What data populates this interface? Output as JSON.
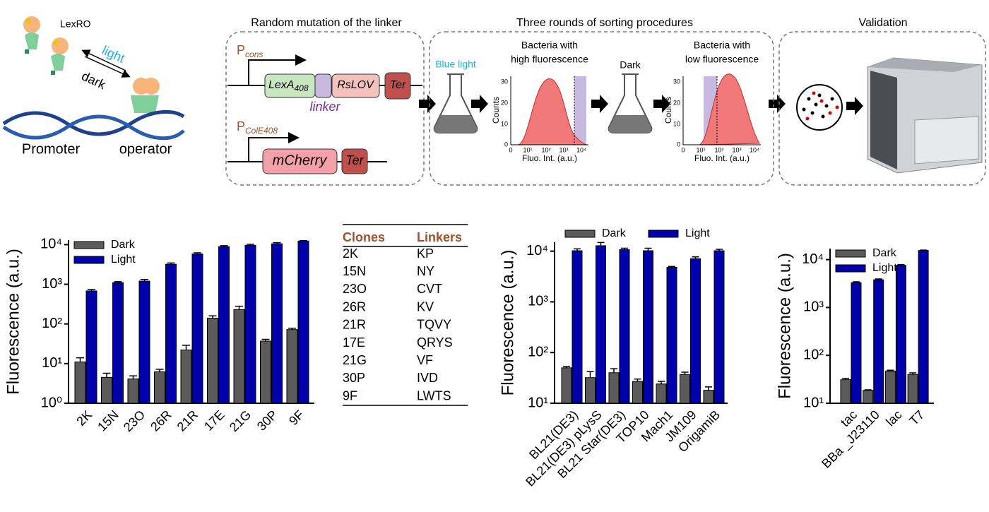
{
  "diagram": {
    "left": {
      "protein": "LexRO",
      "light": "light",
      "dark": "dark",
      "promoter": "Promoter",
      "operator": "operator"
    },
    "mutation": {
      "title": "Random mutation of  the linker",
      "p1": "P",
      "p1_sub": "cons",
      "lexa": "LexA",
      "lexa_sub": "408",
      "linker": "linker",
      "rslov": "RsLOV",
      "ter1": "Ter",
      "p2": "P",
      "p2_sub": "ColE408",
      "mcherry": "mCherry",
      "ter2": "Ter"
    },
    "sorting": {
      "title": "Three rounds of sorting procedures",
      "blue_light": "Blue light",
      "dark": "Dark",
      "histograms": [
        {
          "title": [
            "Bacteria with",
            "high fluorescence"
          ],
          "y_label": "Counts",
          "x_label": "Fluo. Int. (a.u.)",
          "yticks": [
            "0",
            "10",
            "20",
            "30"
          ],
          "xticks": [
            "0",
            "10¹",
            "10²",
            "10³",
            "10⁴"
          ]
        },
        {
          "title": [
            "Bacteria with",
            "low fluorescence"
          ],
          "y_label": "Counts",
          "x_label": "Fluo. Int. (a.u.)",
          "yticks": [
            "0",
            "10",
            "20",
            "30"
          ],
          "xticks": [
            "0",
            "10¹",
            "10²",
            "10³",
            "10⁴"
          ]
        }
      ]
    },
    "validation": {
      "title": "Validation"
    }
  },
  "table": {
    "header": [
      "Clones",
      "Linkers"
    ],
    "rows": [
      [
        "2K",
        "KP"
      ],
      [
        "15N",
        "NY"
      ],
      [
        "23O",
        "CVT"
      ],
      [
        "26R",
        "KV"
      ],
      [
        "21R",
        "TQVY"
      ],
      [
        "17E",
        "QRYS"
      ],
      [
        "21G",
        "VF"
      ],
      [
        "30P",
        "IVD"
      ],
      [
        "9F",
        "LWTS"
      ]
    ]
  },
  "chart_data": [
    {
      "type": "bar",
      "y_label": "Fluorescence (a.u.)",
      "log_scale": true,
      "legend": "upper left",
      "categories": [
        "2K",
        "15N",
        "23O",
        "26R",
        "21R",
        "17E",
        "21G",
        "30P",
        "9F"
      ],
      "series": [
        {
          "name": "Dark",
          "color": "#5b5b5b",
          "values": [
            11,
            4.5,
            4.1,
            6.2,
            22,
            140,
            230,
            37,
            72
          ],
          "errors": [
            3,
            1.2,
            0.8,
            1,
            7,
            20,
            50,
            4,
            6
          ]
        },
        {
          "name": "Light",
          "color": "#0000aa",
          "values": [
            680,
            1100,
            1200,
            3200,
            5800,
            8900,
            9600,
            10500,
            12300
          ],
          "errors": [
            60,
            60,
            120,
            250,
            400,
            500,
            600,
            700,
            300
          ]
        }
      ],
      "ylim": [
        1,
        13000
      ],
      "yticks": [
        {
          "value": 1,
          "label": "10⁰"
        },
        {
          "value": 10,
          "label": "10¹"
        },
        {
          "value": 100,
          "label": "10²"
        },
        {
          "value": 1000,
          "label": "10³"
        },
        {
          "value": 10000,
          "label": "10⁴"
        }
      ]
    },
    {
      "type": "bar",
      "y_label": "Fluorescence (a.u.)",
      "log_scale": true,
      "legend": "top",
      "categories": [
        "BL21(DE3)",
        "BL21(DE3) pLysS",
        "BL21 Star(DE3)",
        "TOP10",
        "Mach1",
        "JM109",
        "OrigamiB"
      ],
      "series": [
        {
          "name": "Dark",
          "color": "#5b5b5b",
          "values": [
            50,
            32,
            40,
            27,
            24,
            37,
            18
          ],
          "errors": [
            3,
            10,
            8,
            3,
            3,
            4,
            3
          ]
        },
        {
          "name": "Light",
          "color": "#0000aa",
          "values": [
            10200,
            12800,
            10700,
            10200,
            4800,
            7100,
            10200
          ],
          "errors": [
            900,
            2000,
            700,
            1200,
            200,
            600,
            700
          ]
        }
      ],
      "ylim": [
        10,
        15000
      ],
      "yticks": [
        {
          "value": 10,
          "label": "10¹"
        },
        {
          "value": 100,
          "label": "10²"
        },
        {
          "value": 1000,
          "label": "10³"
        },
        {
          "value": 10000,
          "label": "10⁴"
        }
      ]
    },
    {
      "type": "bar",
      "y_label": "Fluorescence (a.u.)",
      "log_scale": true,
      "legend": "upper left",
      "categories": [
        "tac",
        "BBa _J23110",
        "lac",
        "T7"
      ],
      "series": [
        {
          "name": "Dark",
          "color": "#5b5b5b",
          "values": [
            31,
            18.6,
            47,
            40
          ],
          "errors": [
            2,
            0.5,
            2,
            3
          ]
        },
        {
          "name": "Light",
          "color": "#0000aa",
          "values": [
            3300,
            3800,
            7600,
            15500
          ],
          "errors": [
            150,
            150,
            300,
            300
          ]
        }
      ],
      "ylim": [
        10,
        17000
      ],
      "yticks": [
        {
          "value": 10,
          "label": "10¹"
        },
        {
          "value": 100,
          "label": "10²"
        },
        {
          "value": 1000,
          "label": "10³"
        },
        {
          "value": 10000,
          "label": "10⁴"
        }
      ]
    }
  ]
}
